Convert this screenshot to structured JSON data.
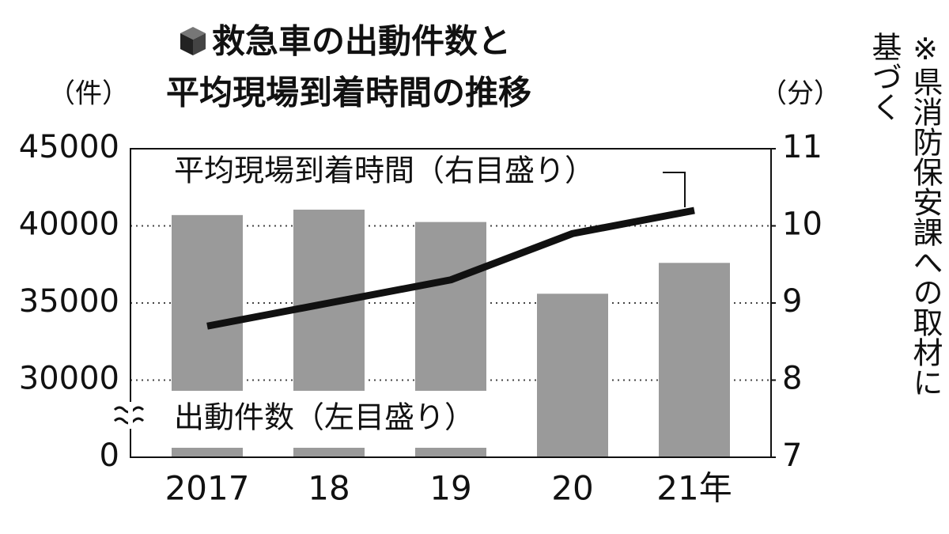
{
  "chart_data": {
    "type": "bar_line",
    "title": [
      "救急車の出動件数と",
      "平均現場到着時間の推移"
    ],
    "y_label": "（件）",
    "y2_label": "（分）",
    "note": [
      "※県消防保安課への取材に",
      "基づく"
    ],
    "categories": [
      "2017",
      "18",
      "19",
      "20",
      "21年"
    ],
    "series": [
      {
        "name": "出動件数（左目盛り）",
        "type": "bar",
        "color": "#9a9a9a",
        "values": [
          40700,
          41050,
          40250,
          35600,
          37600
        ]
      },
      {
        "name": "平均現場到着時間（右目盛り）",
        "type": "line",
        "axis": "y2",
        "color": "#111111",
        "values": [
          8.7,
          9.0,
          9.3,
          9.9,
          10.2
        ]
      }
    ],
    "ylim": [
      0,
      45000
    ],
    "yticks": [
      0,
      30000,
      35000,
      40000,
      45000
    ],
    "y_break": true,
    "y2lim": [
      7,
      11
    ],
    "y2ticks": [
      7,
      8,
      9,
      10,
      11
    ],
    "grid": true
  }
}
